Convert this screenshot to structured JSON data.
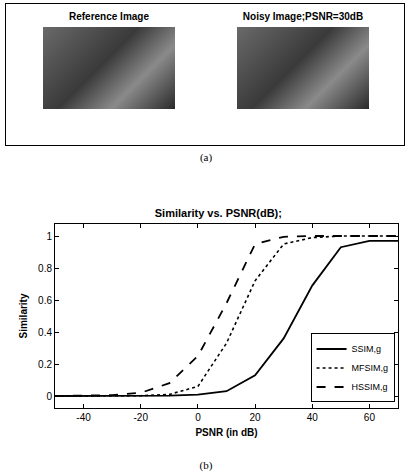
{
  "panel_a": {
    "images": [
      {
        "title": "Reference Image"
      },
      {
        "title": "Noisy Image;PSNR=30dB"
      }
    ],
    "caption": "(a)"
  },
  "chart_data": {
    "type": "line",
    "title": "Similarity vs. PSNR(dB);",
    "x_label": "PSNR (in dB)",
    "y_label": "Similarity",
    "x": [
      -50,
      -40,
      -30,
      -20,
      -10,
      0,
      10,
      20,
      30,
      40,
      50,
      60,
      70
    ],
    "series": [
      {
        "name": "SSIM,g",
        "color": "#000000",
        "line_style": "solid",
        "values": [
          0,
          0,
          0,
          0,
          0.002,
          0.008,
          0.03,
          0.13,
          0.36,
          0.69,
          0.93,
          0.97,
          0.97
        ]
      },
      {
        "name": "MFSIM,g",
        "color": "#000000",
        "line_style": "dotted",
        "values": [
          0,
          0,
          0,
          0.002,
          0.01,
          0.06,
          0.33,
          0.72,
          0.95,
          0.99,
          1,
          1,
          1
        ]
      },
      {
        "name": "HSSIM,g",
        "color": "#000000",
        "line_style": "dashed",
        "values": [
          0,
          0.001,
          0.005,
          0.02,
          0.08,
          0.25,
          0.58,
          0.95,
          0.995,
          1,
          1,
          1,
          1
        ]
      }
    ],
    "xlim": [
      -50,
      70
    ],
    "ylim": [
      -0.075,
      1.075
    ],
    "xticks": [
      -40,
      -20,
      0,
      20,
      40,
      60
    ],
    "yticks": [
      0,
      0.2,
      0.4,
      0.6,
      0.8,
      1
    ],
    "grid": false,
    "legend": "lower right",
    "caption": "(b)"
  }
}
